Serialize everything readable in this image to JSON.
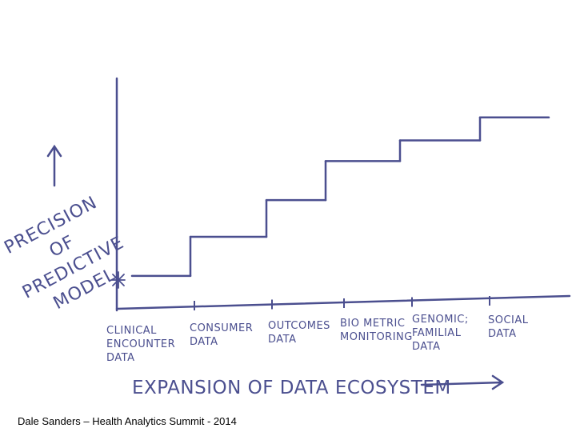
{
  "chart_data": {
    "type": "step",
    "x_label": "EXPANSION OF DATA ECOSYSTEM",
    "y_label": "PRECISION OF PREDICTIVE MODEL",
    "categories": [
      "CLINICAL ENCOUNTER DATA",
      "CONSUMER DATA",
      "OUTCOMES DATA",
      "BIO METRIC MONITORING",
      "GENOMIC; FAMILIAL DATA",
      "SOCIAL DATA"
    ],
    "values": [
      1.4,
      3.1,
      4.7,
      6.4,
      7.3,
      8.3
    ],
    "ylim": [
      0,
      10
    ],
    "color": "#4b4f8f"
  },
  "footer": "Dale Sanders – Health Analytics Summit - 2014"
}
